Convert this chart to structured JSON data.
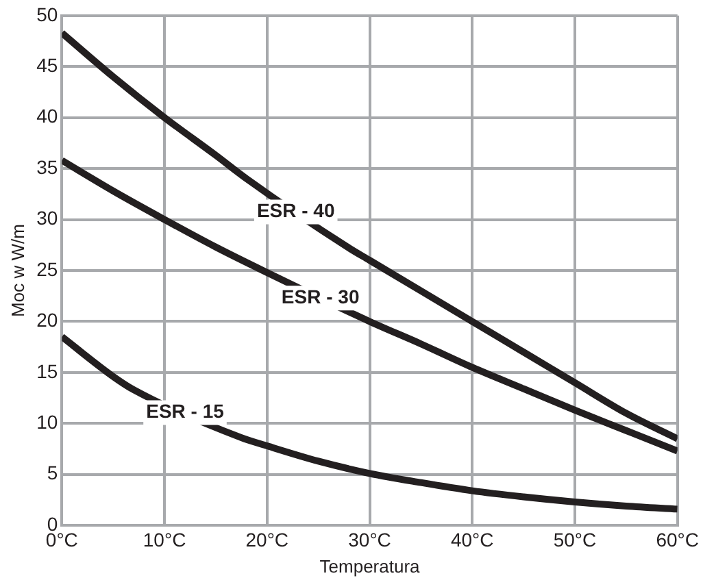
{
  "chart_data": {
    "type": "line",
    "xlabel": "Temperatura",
    "ylabel": "Moc w W/m",
    "series": [
      {
        "name": "ESR - 40",
        "color": "#231f20",
        "x": [
          0,
          5,
          10,
          15,
          18,
          28,
          30,
          35,
          40,
          45,
          50,
          55,
          60
        ],
        "values": [
          48.3,
          44,
          40,
          36.3,
          34,
          27.2,
          26,
          23,
          20,
          17,
          14,
          11,
          8.5
        ]
      },
      {
        "name": "ESR - 30",
        "color": "#231f20",
        "x": [
          0,
          5,
          10,
          15,
          20,
          30,
          35,
          40,
          45,
          50,
          55,
          60
        ],
        "values": [
          35.8,
          32.8,
          30,
          27.3,
          24.8,
          20,
          17.8,
          15.5,
          13.4,
          11.3,
          9.3,
          7.3
        ]
      },
      {
        "name": "ESR - 15",
        "color": "#231f20",
        "x": [
          0,
          5,
          7,
          17.5,
          20,
          25,
          30,
          35,
          40,
          45,
          50,
          55,
          60
        ],
        "values": [
          18.5,
          14.6,
          13.3,
          8.6,
          7.8,
          6.3,
          5.1,
          4.2,
          3.4,
          2.8,
          2.3,
          1.9,
          1.6
        ]
      }
    ],
    "xlim": [
      0,
      60
    ],
    "xticks": [
      {
        "value": 0,
        "label": "0°C"
      },
      {
        "value": 10,
        "label": "10°C"
      },
      {
        "value": 20,
        "label": "20°C"
      },
      {
        "value": 30,
        "label": "30°C"
      },
      {
        "value": 40,
        "label": "40°C"
      },
      {
        "value": 50,
        "label": "50°C"
      },
      {
        "value": 60,
        "label": "60°C"
      }
    ],
    "ylim": [
      0,
      50
    ],
    "yticks": [
      0,
      5,
      10,
      15,
      20,
      25,
      30,
      35,
      40,
      45,
      50
    ],
    "grid": true,
    "legend": false,
    "marker": "none",
    "line_style": "solid"
  }
}
